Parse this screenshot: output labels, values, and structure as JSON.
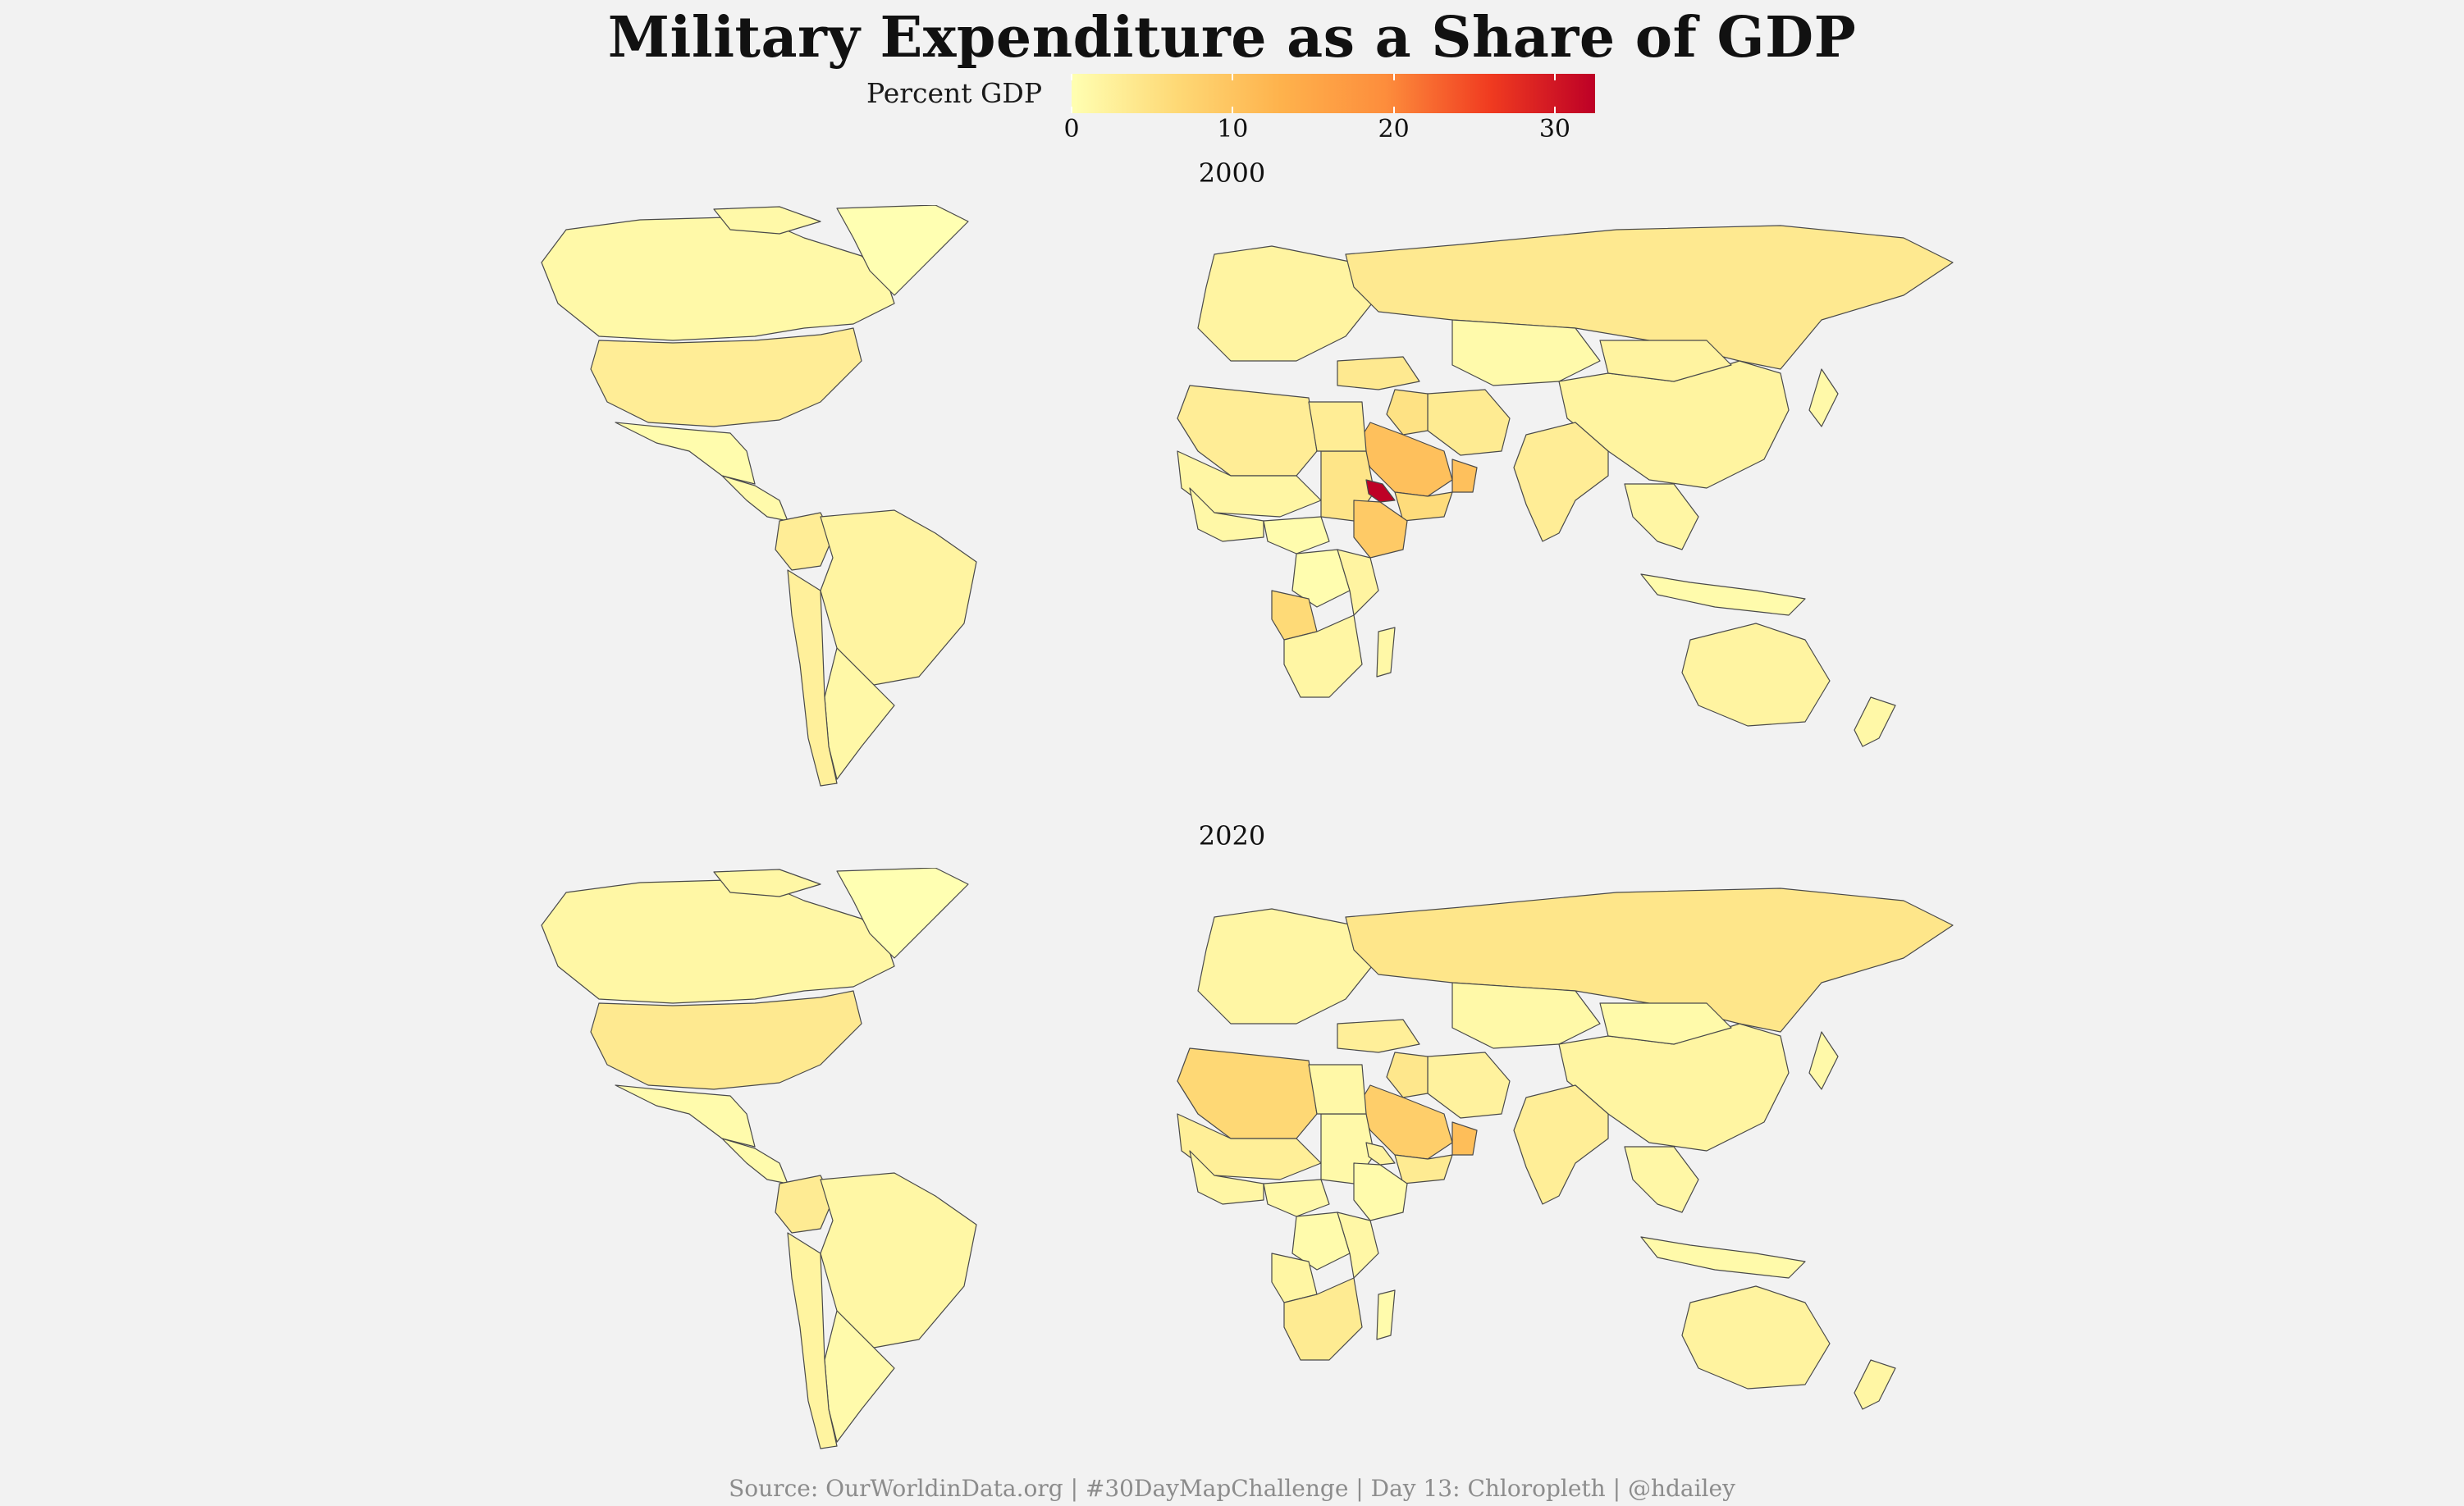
{
  "title": "Military Expenditure as a Share of GDP",
  "legend": {
    "label": "Percent GDP",
    "min": 0,
    "max": 32.5,
    "ticks": [
      "0",
      "10",
      "20",
      "30"
    ],
    "tick_values": [
      0,
      10,
      20,
      30
    ],
    "colors": [
      "#ffffb2",
      "#fed976",
      "#feb24c",
      "#fd8d3c",
      "#f03b20",
      "#bd0026"
    ]
  },
  "panels": [
    {
      "year": "2000",
      "regions": [
        {
          "name": "Canada",
          "value": 1.1
        },
        {
          "name": "United States",
          "value": 3.0
        },
        {
          "name": "Mexico",
          "value": 0.5
        },
        {
          "name": "Central America",
          "value": 0.8
        },
        {
          "name": "Colombia",
          "value": 3.0
        },
        {
          "name": "Brazil",
          "value": 1.8
        },
        {
          "name": "Argentina",
          "value": 1.2
        },
        {
          "name": "Chile",
          "value": 2.5
        },
        {
          "name": "Greenland",
          "value": 0
        },
        {
          "name": "Europe",
          "value": 1.8
        },
        {
          "name": "Russia",
          "value": 3.7
        },
        {
          "name": "Kazakhstan",
          "value": 0.8
        },
        {
          "name": "China",
          "value": 1.9
        },
        {
          "name": "Mongolia",
          "value": 2.0
        },
        {
          "name": "India",
          "value": 3.0
        },
        {
          "name": "Iran",
          "value": 3.5
        },
        {
          "name": "Turkey",
          "value": 3.7
        },
        {
          "name": "Iraq",
          "value": 5.0
        },
        {
          "name": "Saudi Arabia",
          "value": 10.6
        },
        {
          "name": "Yemen",
          "value": 6.0
        },
        {
          "name": "Oman",
          "value": 10.6
        },
        {
          "name": "Southeast Asia",
          "value": 1.5
        },
        {
          "name": "Japan",
          "value": 1.0
        },
        {
          "name": "North Africa",
          "value": 3.0
        },
        {
          "name": "Sahel",
          "value": 1.5
        },
        {
          "name": "Sudan",
          "value": 4.5
        },
        {
          "name": "Egypt",
          "value": 3.1
        },
        {
          "name": "Ethiopia",
          "value": 9.0
        },
        {
          "name": "Eritrea",
          "value": 32.4
        },
        {
          "name": "West Africa",
          "value": 1.2
        },
        {
          "name": "Central Africa",
          "value": 0.5
        },
        {
          "name": "DR Congo",
          "value": 0.3
        },
        {
          "name": "Angola",
          "value": 6.4
        },
        {
          "name": "East Africa",
          "value": 1.8
        },
        {
          "name": "Southern Africa",
          "value": 1.5
        },
        {
          "name": "Madagascar",
          "value": 1.2
        },
        {
          "name": "Australia",
          "value": 1.8
        },
        {
          "name": "New Zealand",
          "value": 1.2
        },
        {
          "name": "Indonesia",
          "value": 0.7
        }
      ]
    },
    {
      "year": "2020",
      "regions": [
        {
          "name": "Canada",
          "value": 1.4
        },
        {
          "name": "United States",
          "value": 3.7
        },
        {
          "name": "Mexico",
          "value": 0.6
        },
        {
          "name": "Central America",
          "value": 0.7
        },
        {
          "name": "Colombia",
          "value": 3.4
        },
        {
          "name": "Brazil",
          "value": 1.4
        },
        {
          "name": "Argentina",
          "value": 0.8
        },
        {
          "name": "Chile",
          "value": 1.9
        },
        {
          "name": "Greenland",
          "value": 0
        },
        {
          "name": "Europe",
          "value": 1.5
        },
        {
          "name": "Russia",
          "value": 4.3
        },
        {
          "name": "Kazakhstan",
          "value": 1.1
        },
        {
          "name": "China",
          "value": 1.7
        },
        {
          "name": "Mongolia",
          "value": 0.9
        },
        {
          "name": "India",
          "value": 2.9
        },
        {
          "name": "Iran",
          "value": 2.2
        },
        {
          "name": "Turkey",
          "value": 2.7
        },
        {
          "name": "Iraq",
          "value": 4.1
        },
        {
          "name": "Saudi Arabia",
          "value": 8.4
        },
        {
          "name": "Yemen",
          "value": 3.5
        },
        {
          "name": "Oman",
          "value": 11.0
        },
        {
          "name": "Southeast Asia",
          "value": 1.3
        },
        {
          "name": "Japan",
          "value": 1.0
        },
        {
          "name": "North Africa",
          "value": 6.7
        },
        {
          "name": "Sahel",
          "value": 2.8
        },
        {
          "name": "Sudan",
          "value": 1.0
        },
        {
          "name": "Egypt",
          "value": 1.2
        },
        {
          "name": "Ethiopia",
          "value": 0.6
        },
        {
          "name": "Eritrea",
          "value": 2.0
        },
        {
          "name": "West Africa",
          "value": 1.5
        },
        {
          "name": "Central Africa",
          "value": 1.0
        },
        {
          "name": "DR Congo",
          "value": 0.7
        },
        {
          "name": "Angola",
          "value": 1.6
        },
        {
          "name": "East Africa",
          "value": 1.3
        },
        {
          "name": "Southern Africa",
          "value": 3.5
        },
        {
          "name": "Madagascar",
          "value": 0.6
        },
        {
          "name": "Australia",
          "value": 2.1
        },
        {
          "name": "New Zealand",
          "value": 1.5
        },
        {
          "name": "Indonesia",
          "value": 0.9
        }
      ]
    }
  ],
  "source": "Source: OurWorldinData.org | #30DayMapChallenge | Day 13: Chloropleth | @hdailey"
}
